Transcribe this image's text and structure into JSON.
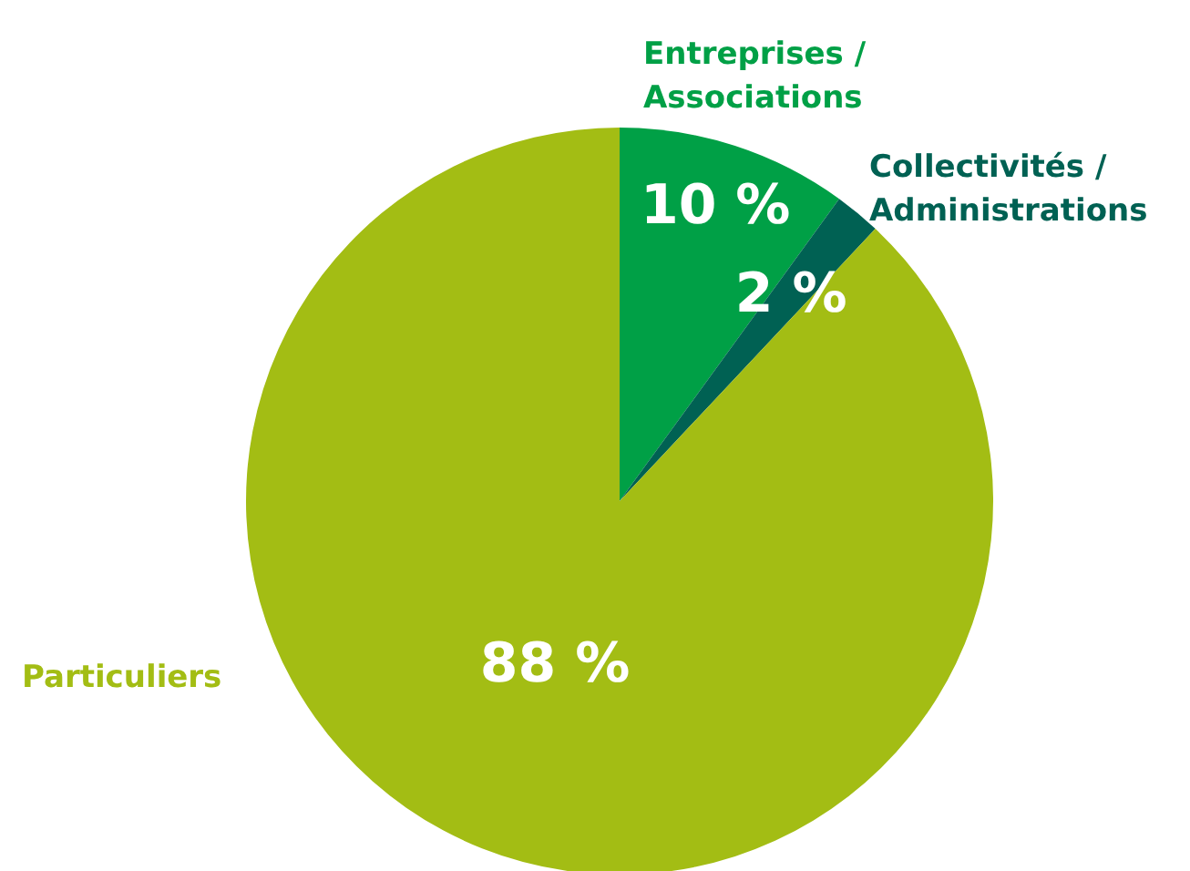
{
  "chart_data": {
    "type": "pie",
    "categories": [
      "Entreprises / Associations",
      "Collectivités / Administrations",
      "Particuliers"
    ],
    "values": [
      10,
      2,
      88
    ],
    "colors": [
      "#00a046",
      "#006153",
      "#a3bd14"
    ],
    "value_labels": [
      "10 %",
      "2 %",
      "88 %"
    ],
    "legend": false
  }
}
